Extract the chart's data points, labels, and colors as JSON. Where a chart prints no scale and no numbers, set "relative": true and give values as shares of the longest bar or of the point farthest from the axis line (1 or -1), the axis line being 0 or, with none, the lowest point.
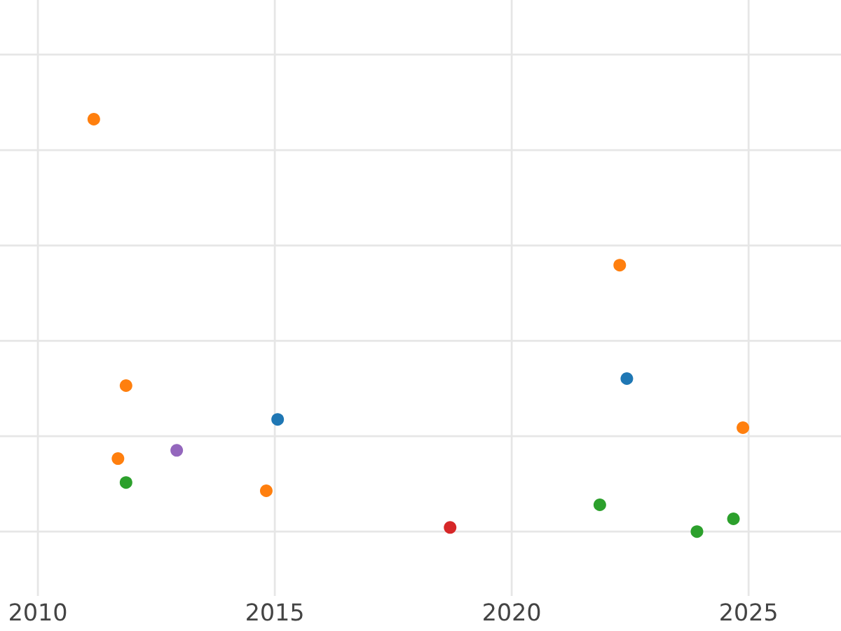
{
  "chart_data": {
    "type": "scatter",
    "relative": true,
    "xlim": [
      2009.2,
      2026.95
    ],
    "xticks": [
      2010,
      2015,
      2020,
      2025
    ],
    "grid": true,
    "tick_labels": "x",
    "marker": "circle",
    "series": [
      {
        "color": "#ff7f0e",
        "x": [
          2011.18,
          2022.28,
          2011.86,
          2024.88,
          2011.69,
          2014.82
        ],
        "values": [
          1,
          0.646,
          0.354,
          0.252,
          0.177,
          0.099
        ]
      },
      {
        "color": "#1f77b4",
        "x": [
          2015.06,
          2022.43
        ],
        "values": [
          0.272,
          0.371
        ]
      },
      {
        "color": "#2ca02c",
        "x": [
          2011.86,
          2021.86,
          2023.91,
          2024.68
        ],
        "values": [
          0.119,
          0.065,
          0,
          0.031
        ]
      },
      {
        "color": "#9467bd",
        "x": [
          2012.93
        ],
        "values": [
          0.197
        ]
      },
      {
        "color": "#d62728",
        "x": [
          2018.7
        ],
        "values": [
          0.01
        ]
      }
    ]
  }
}
